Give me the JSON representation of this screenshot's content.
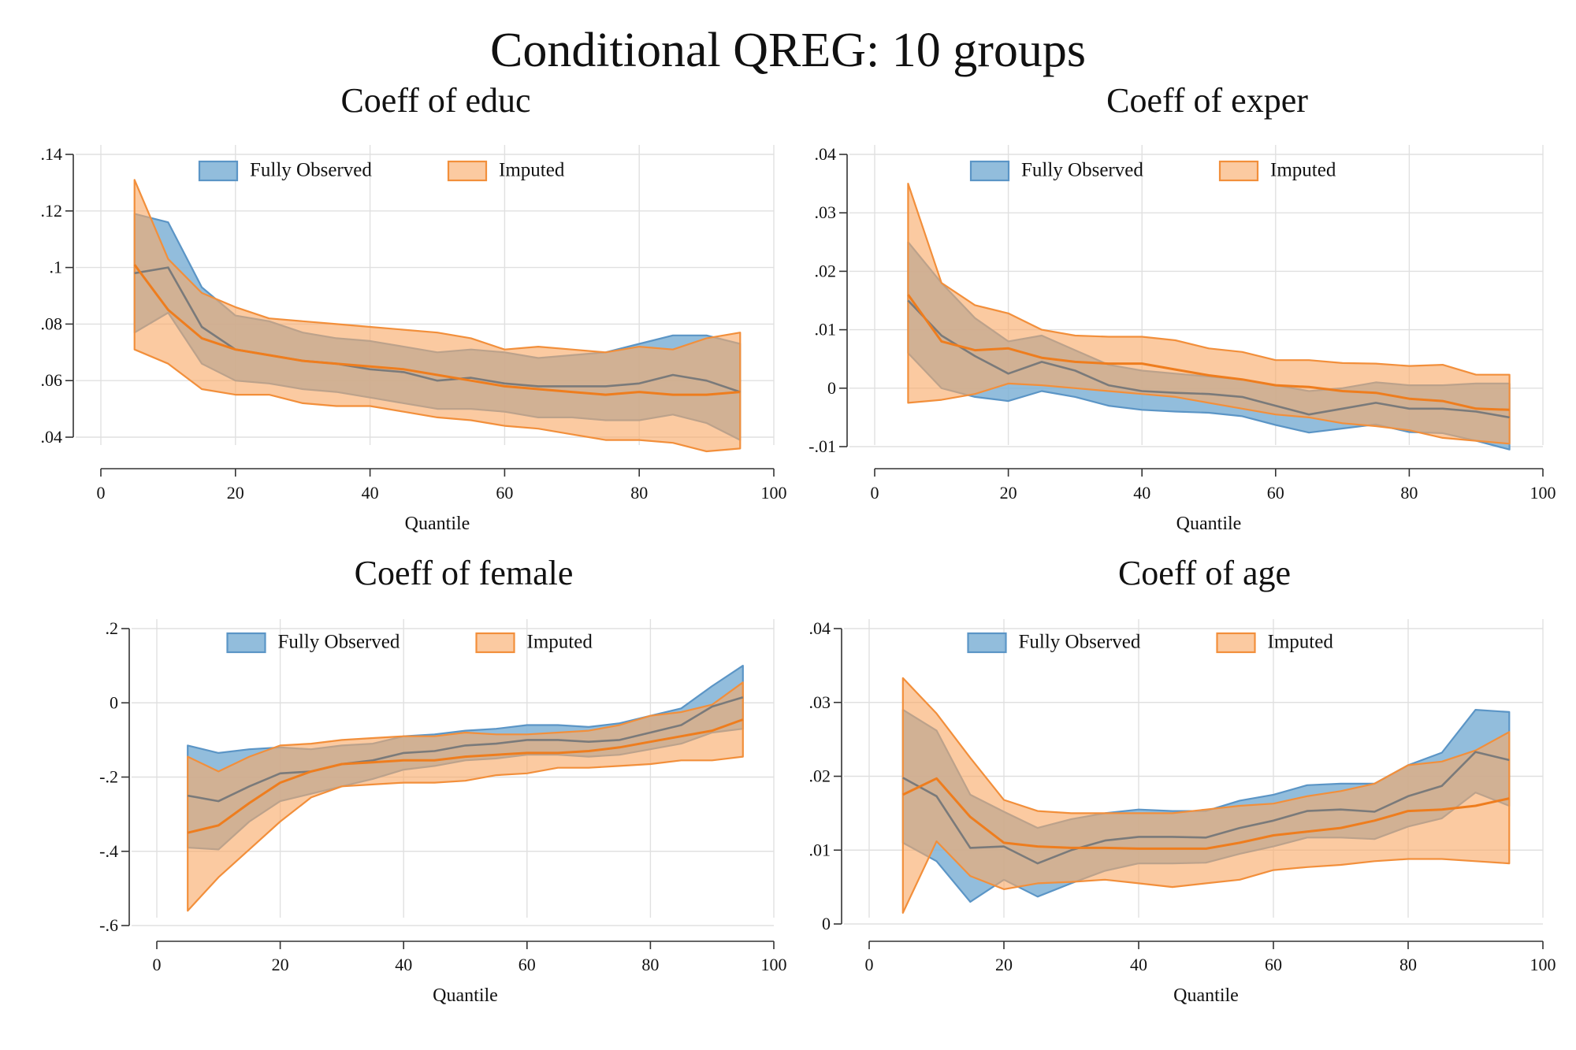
{
  "figure": {
    "title": "Conditional QREG: 10 groups"
  },
  "legend_items": [
    "Fully Observed",
    "Imputed"
  ],
  "colors": {
    "fully_observed_fill": "#7fb1d6",
    "fully_observed_line": "#5b95c6",
    "imputed_fill": "#f8a968",
    "imputed_line": "#f28f3b",
    "observed_mid_line": "#7a7a7a",
    "imputed_mid_line": "#ee7d1e"
  },
  "chart_data": [
    {
      "type": "area",
      "title": "Coeff of educ",
      "xlabel": "Quantile",
      "ylabel": "",
      "xlim": [
        0,
        100
      ],
      "ylim": [
        0.04,
        0.14
      ],
      "x_ticks": [
        0,
        20,
        40,
        60,
        80,
        100
      ],
      "x_tick_labels": [
        "0",
        "20",
        "40",
        "60",
        "80",
        "100"
      ],
      "y_ticks": [
        0.04,
        0.06,
        0.08,
        0.1,
        0.12,
        0.14
      ],
      "y_tick_labels": [
        ".04",
        ".06",
        ".08",
        ".1",
        ".12",
        ".14"
      ],
      "grid": true,
      "legend": "top-center",
      "x": [
        5,
        10,
        15,
        20,
        25,
        30,
        35,
        40,
        45,
        50,
        55,
        60,
        65,
        70,
        75,
        80,
        85,
        90,
        95
      ],
      "series": [
        {
          "name": "Fully Observed",
          "lower": [
            0.077,
            0.084,
            0.066,
            0.06,
            0.059,
            0.057,
            0.056,
            0.054,
            0.052,
            0.05,
            0.05,
            0.049,
            0.047,
            0.047,
            0.046,
            0.046,
            0.048,
            0.045,
            0.039
          ],
          "mid": [
            0.098,
            0.1,
            0.079,
            0.071,
            0.069,
            0.067,
            0.066,
            0.064,
            0.063,
            0.06,
            0.061,
            0.059,
            0.058,
            0.058,
            0.058,
            0.059,
            0.062,
            0.06,
            0.056
          ],
          "upper": [
            0.119,
            0.116,
            0.093,
            0.083,
            0.081,
            0.077,
            0.075,
            0.074,
            0.072,
            0.07,
            0.071,
            0.07,
            0.068,
            0.069,
            0.07,
            0.073,
            0.076,
            0.076,
            0.073
          ]
        },
        {
          "name": "Imputed",
          "lower": [
            0.071,
            0.066,
            0.057,
            0.055,
            0.055,
            0.052,
            0.051,
            0.051,
            0.049,
            0.047,
            0.046,
            0.044,
            0.043,
            0.041,
            0.039,
            0.039,
            0.038,
            0.035,
            0.036
          ],
          "mid": [
            0.101,
            0.085,
            0.075,
            0.071,
            0.069,
            0.067,
            0.066,
            0.065,
            0.064,
            0.062,
            0.06,
            0.058,
            0.057,
            0.056,
            0.055,
            0.056,
            0.055,
            0.055,
            0.056
          ],
          "upper": [
            0.131,
            0.103,
            0.091,
            0.086,
            0.082,
            0.081,
            0.08,
            0.079,
            0.078,
            0.077,
            0.075,
            0.071,
            0.072,
            0.071,
            0.07,
            0.072,
            0.071,
            0.075,
            0.077
          ]
        }
      ]
    },
    {
      "type": "area",
      "title": "Coeff of exper",
      "xlabel": "Quantile",
      "ylabel": "",
      "xlim": [
        0,
        100
      ],
      "ylim": [
        -0.01,
        0.04
      ],
      "x_ticks": [
        0,
        20,
        40,
        60,
        80,
        100
      ],
      "x_tick_labels": [
        "0",
        "20",
        "40",
        "60",
        "80",
        "100"
      ],
      "y_ticks": [
        -0.01,
        0,
        0.01,
        0.02,
        0.03,
        0.04
      ],
      "y_tick_labels": [
        "-.01",
        "0",
        ".01",
        ".02",
        ".03",
        ".04"
      ],
      "grid": true,
      "legend": "top-center",
      "x": [
        5,
        10,
        15,
        20,
        25,
        30,
        35,
        40,
        45,
        50,
        55,
        60,
        65,
        70,
        75,
        80,
        85,
        90,
        95
      ],
      "series": [
        {
          "name": "Fully Observed",
          "lower": [
            0.006,
            0.0,
            -0.0015,
            -0.0022,
            -0.0005,
            -0.0015,
            -0.003,
            -0.0037,
            -0.004,
            -0.0042,
            -0.0048,
            -0.0063,
            -0.0076,
            -0.0069,
            -0.0062,
            -0.0075,
            -0.0077,
            -0.009,
            -0.0105
          ],
          "mid": [
            0.015,
            0.009,
            0.0055,
            0.0025,
            0.0045,
            0.003,
            0.0005,
            -0.0005,
            -0.0008,
            -0.001,
            -0.0015,
            -0.003,
            -0.0045,
            -0.0035,
            -0.0025,
            -0.0035,
            -0.0035,
            -0.004,
            -0.005
          ],
          "upper": [
            0.025,
            0.018,
            0.012,
            0.008,
            0.009,
            0.0065,
            0.004,
            0.003,
            0.0025,
            0.002,
            0.0015,
            0.0005,
            -0.0005,
            0.0,
            0.001,
            0.0005,
            0.0005,
            0.0008,
            0.0008
          ]
        },
        {
          "name": "Imputed",
          "lower": [
            -0.0025,
            -0.002,
            -0.001,
            0.0008,
            0.0005,
            0.0,
            -0.0005,
            -0.001,
            -0.0015,
            -0.0025,
            -0.0035,
            -0.0045,
            -0.005,
            -0.006,
            -0.0065,
            -0.0072,
            -0.0085,
            -0.009,
            -0.0095
          ],
          "mid": [
            0.016,
            0.008,
            0.0065,
            0.0068,
            0.0052,
            0.0045,
            0.0042,
            0.0042,
            0.0032,
            0.0022,
            0.0015,
            0.0005,
            0.0002,
            -0.0005,
            -0.0008,
            -0.0018,
            -0.0022,
            -0.0035,
            -0.0037
          ],
          "upper": [
            0.035,
            0.018,
            0.0142,
            0.0128,
            0.01,
            0.009,
            0.0088,
            0.0088,
            0.0082,
            0.0068,
            0.0062,
            0.0048,
            0.0048,
            0.0043,
            0.0042,
            0.0038,
            0.004,
            0.0023,
            0.0023
          ]
        }
      ]
    },
    {
      "type": "area",
      "title": "Coeff of female",
      "xlabel": "Quantile",
      "ylabel": "",
      "xlim": [
        0,
        100
      ],
      "ylim": [
        -0.6,
        0.2
      ],
      "x_ticks": [
        0,
        20,
        40,
        60,
        80,
        100
      ],
      "x_tick_labels": [
        "0",
        "20",
        "40",
        "60",
        "80",
        "100"
      ],
      "y_ticks": [
        -0.6,
        -0.4,
        -0.2,
        0,
        0.2
      ],
      "y_tick_labels": [
        "-.6",
        "-.4",
        "-.2",
        "0",
        ".2"
      ],
      "grid": true,
      "legend": "top-center",
      "x": [
        5,
        10,
        15,
        20,
        25,
        30,
        35,
        40,
        45,
        50,
        55,
        60,
        65,
        70,
        75,
        80,
        85,
        90,
        95
      ],
      "series": [
        {
          "name": "Fully Observed",
          "lower": [
            -0.39,
            -0.395,
            -0.32,
            -0.265,
            -0.245,
            -0.225,
            -0.205,
            -0.18,
            -0.17,
            -0.155,
            -0.15,
            -0.14,
            -0.14,
            -0.145,
            -0.14,
            -0.125,
            -0.11,
            -0.08,
            -0.07
          ],
          "mid": [
            -0.25,
            -0.265,
            -0.225,
            -0.19,
            -0.185,
            -0.165,
            -0.155,
            -0.135,
            -0.13,
            -0.115,
            -0.11,
            -0.1,
            -0.1,
            -0.105,
            -0.1,
            -0.08,
            -0.06,
            -0.01,
            0.015
          ],
          "upper": [
            -0.115,
            -0.135,
            -0.125,
            -0.12,
            -0.125,
            -0.115,
            -0.11,
            -0.09,
            -0.085,
            -0.075,
            -0.07,
            -0.06,
            -0.06,
            -0.065,
            -0.055,
            -0.035,
            -0.015,
            0.045,
            0.1
          ]
        },
        {
          "name": "Imputed",
          "lower": [
            -0.56,
            -0.47,
            -0.395,
            -0.32,
            -0.255,
            -0.225,
            -0.22,
            -0.215,
            -0.215,
            -0.21,
            -0.195,
            -0.19,
            -0.175,
            -0.175,
            -0.17,
            -0.165,
            -0.155,
            -0.155,
            -0.145
          ],
          "mid": [
            -0.35,
            -0.33,
            -0.27,
            -0.215,
            -0.185,
            -0.165,
            -0.16,
            -0.155,
            -0.155,
            -0.145,
            -0.14,
            -0.135,
            -0.135,
            -0.13,
            -0.12,
            -0.105,
            -0.09,
            -0.075,
            -0.045
          ],
          "upper": [
            -0.145,
            -0.185,
            -0.145,
            -0.115,
            -0.11,
            -0.1,
            -0.095,
            -0.09,
            -0.09,
            -0.08,
            -0.085,
            -0.085,
            -0.08,
            -0.075,
            -0.06,
            -0.035,
            -0.025,
            -0.005,
            0.055
          ]
        }
      ]
    },
    {
      "type": "area",
      "title": "Coeff of age",
      "xlabel": "Quantile",
      "ylabel": "",
      "xlim": [
        0,
        100
      ],
      "ylim": [
        0,
        0.04
      ],
      "x_ticks": [
        0,
        20,
        40,
        60,
        80,
        100
      ],
      "x_tick_labels": [
        "0",
        "20",
        "40",
        "60",
        "80",
        "100"
      ],
      "y_ticks": [
        0,
        0.01,
        0.02,
        0.03,
        0.04
      ],
      "y_tick_labels": [
        "0",
        ".01",
        ".02",
        ".03",
        ".04"
      ],
      "grid": true,
      "legend": "top-center",
      "x": [
        5,
        10,
        15,
        20,
        25,
        30,
        35,
        40,
        45,
        50,
        55,
        60,
        65,
        70,
        75,
        80,
        85,
        90,
        95
      ],
      "series": [
        {
          "name": "Fully Observed",
          "lower": [
            0.011,
            0.0085,
            0.003,
            0.006,
            0.0037,
            0.0055,
            0.0072,
            0.0082,
            0.0082,
            0.0083,
            0.0095,
            0.0105,
            0.0117,
            0.0117,
            0.0115,
            0.0132,
            0.0143,
            0.0178,
            0.016
          ],
          "mid": [
            0.0198,
            0.0173,
            0.0103,
            0.0105,
            0.0082,
            0.01,
            0.0113,
            0.0118,
            0.0118,
            0.0117,
            0.013,
            0.014,
            0.0153,
            0.0155,
            0.0152,
            0.0173,
            0.0187,
            0.0233,
            0.0222
          ],
          "upper": [
            0.029,
            0.0262,
            0.0175,
            0.0152,
            0.013,
            0.0142,
            0.015,
            0.0155,
            0.0153,
            0.0153,
            0.0167,
            0.0175,
            0.0188,
            0.019,
            0.019,
            0.0215,
            0.0232,
            0.029,
            0.0287
          ]
        },
        {
          "name": "Imputed",
          "lower": [
            0.0015,
            0.0112,
            0.0065,
            0.0047,
            0.0055,
            0.0057,
            0.006,
            0.0055,
            0.005,
            0.0055,
            0.006,
            0.0073,
            0.0077,
            0.008,
            0.0085,
            0.0088,
            0.0088,
            0.0085,
            0.0082
          ],
          "mid": [
            0.0175,
            0.0197,
            0.0145,
            0.011,
            0.0105,
            0.0103,
            0.0103,
            0.0102,
            0.0102,
            0.0102,
            0.011,
            0.012,
            0.0125,
            0.013,
            0.014,
            0.0153,
            0.0155,
            0.016,
            0.017
          ],
          "upper": [
            0.0333,
            0.0285,
            0.0225,
            0.0168,
            0.0153,
            0.015,
            0.015,
            0.015,
            0.015,
            0.0155,
            0.016,
            0.0163,
            0.0173,
            0.018,
            0.019,
            0.0215,
            0.022,
            0.0235,
            0.026
          ]
        }
      ]
    }
  ]
}
